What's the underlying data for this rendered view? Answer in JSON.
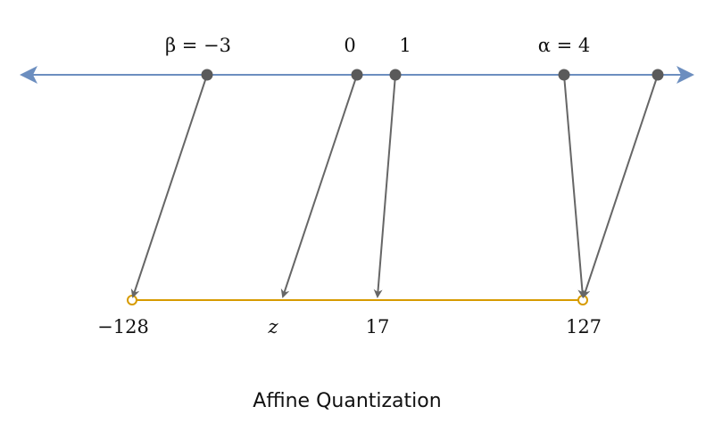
{
  "title": "Affine Quantization",
  "colors": {
    "real_line": "#6c8ebf",
    "quant_line": "#d79b00",
    "points": "#5a5a5a",
    "arrows": "#666666",
    "text": "#111111"
  },
  "real_axis": {
    "labels": {
      "beta": "β = −3",
      "zero": "0",
      "one": "1",
      "alpha": "α = 4"
    }
  },
  "quantized_axis": {
    "labels": {
      "min": "−128",
      "z": "z",
      "seventeen": "17",
      "max": "127"
    }
  },
  "mappings": [
    {
      "from": "β = −3",
      "to": "−128"
    },
    {
      "from": "0",
      "to": "z"
    },
    {
      "from": "1",
      "to": "17"
    },
    {
      "from": "α = 4",
      "to": "127"
    },
    {
      "from": "> α (clipped)",
      "to": "127"
    }
  ]
}
